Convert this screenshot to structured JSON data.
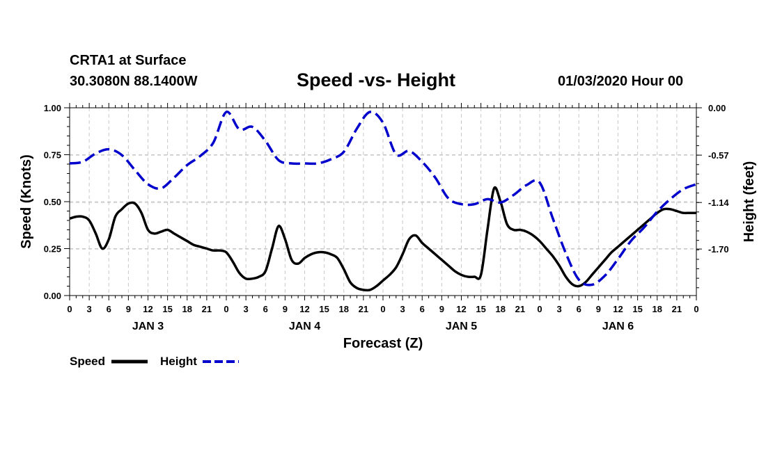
{
  "header": {
    "station": "CRTA1 at Surface",
    "coords": "30.3080N 88.1400W",
    "title": "Speed -vs- Height",
    "datetime": "01/03/2020 Hour 00"
  },
  "chart_data": {
    "type": "line",
    "title": "Speed -vs- Height",
    "xlabel": "Forecast (Z)",
    "ylabel_left": "Speed (Knots)",
    "ylabel_right": "Height (feet)",
    "x_range_hours": [
      0,
      96
    ],
    "x_tick_hours": [
      0,
      3,
      6,
      9,
      12,
      15,
      18,
      21,
      24,
      27,
      30,
      33,
      36,
      39,
      42,
      45,
      48,
      51,
      54,
      57,
      60,
      63,
      66,
      69,
      72,
      75,
      78,
      81,
      84,
      87,
      90,
      93,
      96
    ],
    "x_tick_labels": [
      "0",
      "3",
      "6",
      "9",
      "12",
      "15",
      "18",
      "21",
      "0",
      "3",
      "6",
      "9",
      "12",
      "15",
      "18",
      "21",
      "0",
      "3",
      "6",
      "9",
      "12",
      "15",
      "18",
      "21",
      "0",
      "3",
      "6",
      "9",
      "12",
      "15",
      "18",
      "21",
      "0"
    ],
    "day_labels": [
      {
        "label": "JAN 3",
        "hour": 12
      },
      {
        "label": "JAN 4",
        "hour": 36
      },
      {
        "label": "JAN 5",
        "hour": 60
      },
      {
        "label": "JAN 6",
        "hour": 84
      }
    ],
    "y_left": {
      "range": [
        0,
        1
      ],
      "ticks": [
        0,
        0.25,
        0.5,
        0.75,
        1.0
      ],
      "tick_labels": [
        "0.00",
        "0.25",
        "0.50",
        "0.75",
        "1.00"
      ]
    },
    "y_right": {
      "range": [
        -2.26,
        0
      ],
      "ticks": [
        0,
        -0.57,
        -1.14,
        -1.7
      ],
      "tick_labels": [
        "0.00",
        "-0.57",
        "-1.14",
        "-1.70"
      ]
    },
    "grid": true,
    "legend_placement": "bottom-left",
    "series": [
      {
        "name": "Speed",
        "axis": "left",
        "color": "#000000",
        "dash": "solid",
        "x": [
          0,
          1,
          2,
          3,
          4,
          5,
          6,
          7,
          8,
          9,
          10,
          11,
          12,
          13,
          14,
          15,
          16,
          17,
          18,
          19,
          20,
          21,
          22,
          23,
          24,
          25,
          26,
          27,
          28,
          29,
          30,
          31,
          32,
          33,
          34,
          35,
          36,
          37,
          38,
          39,
          40,
          41,
          42,
          43,
          44,
          45,
          46,
          47,
          48,
          49,
          50,
          51,
          52,
          53,
          54,
          55,
          56,
          57,
          58,
          59,
          60,
          61,
          62,
          63,
          64,
          65,
          66,
          67,
          68,
          69,
          70,
          71,
          72,
          73,
          74,
          75,
          76,
          77,
          78,
          79,
          80,
          81,
          82,
          83,
          84,
          85,
          86,
          87,
          88,
          89,
          90,
          91,
          92,
          93,
          94,
          95,
          96
        ],
        "values": [
          0.41,
          0.42,
          0.42,
          0.4,
          0.33,
          0.25,
          0.3,
          0.42,
          0.46,
          0.49,
          0.49,
          0.44,
          0.35,
          0.33,
          0.34,
          0.35,
          0.33,
          0.31,
          0.29,
          0.27,
          0.26,
          0.25,
          0.24,
          0.24,
          0.23,
          0.18,
          0.12,
          0.09,
          0.09,
          0.1,
          0.13,
          0.25,
          0.37,
          0.3,
          0.19,
          0.17,
          0.2,
          0.22,
          0.23,
          0.23,
          0.22,
          0.2,
          0.14,
          0.07,
          0.04,
          0.03,
          0.03,
          0.05,
          0.08,
          0.11,
          0.15,
          0.22,
          0.3,
          0.32,
          0.28,
          0.25,
          0.22,
          0.19,
          0.16,
          0.13,
          0.11,
          0.1,
          0.1,
          0.11,
          0.35,
          0.57,
          0.5,
          0.38,
          0.35,
          0.35,
          0.34,
          0.32,
          0.29,
          0.25,
          0.21,
          0.16,
          0.1,
          0.06,
          0.05,
          0.07,
          0.11,
          0.15,
          0.19,
          0.23,
          0.26,
          0.29,
          0.32,
          0.35,
          0.38,
          0.41,
          0.44,
          0.46,
          0.46,
          0.45,
          0.44,
          0.44,
          0.44
        ]
      },
      {
        "name": "Height",
        "axis": "right",
        "color": "#0000cc",
        "dash": "dashed",
        "x": [
          0,
          2,
          4,
          6,
          8,
          10,
          12,
          14,
          16,
          18,
          20,
          22,
          24,
          26,
          28,
          30,
          32,
          34,
          36,
          38,
          40,
          42,
          44,
          46,
          48,
          50,
          52,
          54,
          56,
          58,
          60,
          62,
          64,
          66,
          68,
          70,
          72,
          74,
          76,
          78,
          80,
          82,
          84,
          86,
          88,
          90,
          92,
          94,
          96
        ],
        "values": [
          -0.67,
          -0.65,
          -0.55,
          -0.5,
          -0.57,
          -0.75,
          -0.92,
          -0.97,
          -0.84,
          -0.69,
          -0.58,
          -0.42,
          -0.05,
          -0.26,
          -0.23,
          -0.4,
          -0.63,
          -0.67,
          -0.67,
          -0.67,
          -0.62,
          -0.53,
          -0.25,
          -0.05,
          -0.18,
          -0.56,
          -0.52,
          -0.65,
          -0.84,
          -1.09,
          -1.16,
          -1.16,
          -1.1,
          -1.14,
          -1.05,
          -0.93,
          -0.9,
          -1.33,
          -1.75,
          -2.07,
          -2.13,
          -2.02,
          -1.82,
          -1.6,
          -1.44,
          -1.25,
          -1.1,
          -0.98,
          -0.92
        ]
      }
    ]
  },
  "legend": {
    "items": [
      {
        "label": "Speed",
        "color": "#000000",
        "dash": "solid"
      },
      {
        "label": "Height",
        "color": "#0000cc",
        "dash": "dashed"
      }
    ]
  }
}
